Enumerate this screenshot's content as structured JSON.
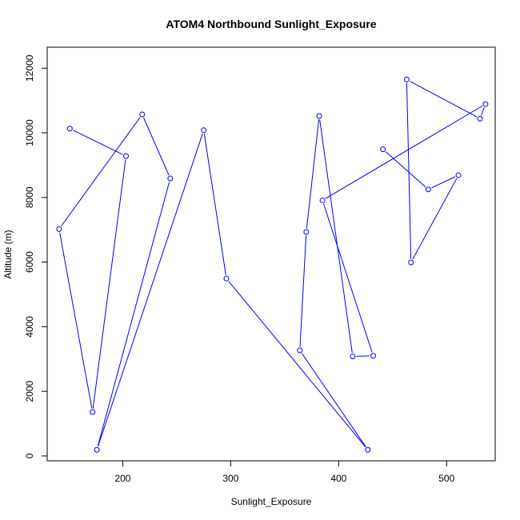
{
  "chart_data": {
    "type": "line",
    "title": "ATOM4 Northbound Sunlight_Exposure",
    "xlabel": "Sunlight_Exposure",
    "ylabel": "Altitude (m)",
    "xlim": [
      130,
      545
    ],
    "ylim": [
      -150,
      12650
    ],
    "x_ticks": [
      200,
      300,
      400,
      500
    ],
    "y_ticks": [
      0,
      2000,
      4000,
      6000,
      8000,
      10000,
      12000
    ],
    "grid": false,
    "series_color": "#0000ff",
    "marker": "open-circle",
    "points": [
      {
        "x": 151,
        "y": 10130
      },
      {
        "x": 203,
        "y": 9280
      },
      {
        "x": 172,
        "y": 1360
      },
      {
        "x": 141,
        "y": 7020
      },
      {
        "x": 218,
        "y": 10570
      },
      {
        "x": 244,
        "y": 8590
      },
      {
        "x": 176,
        "y": 190
      },
      {
        "x": 275,
        "y": 10080
      },
      {
        "x": 296,
        "y": 5490
      },
      {
        "x": 427,
        "y": 190
      },
      {
        "x": 364,
        "y": 3270
      },
      {
        "x": 370,
        "y": 6930
      },
      {
        "x": 382,
        "y": 10520
      },
      {
        "x": 413,
        "y": 3080
      },
      {
        "x": 432,
        "y": 3100
      },
      {
        "x": 385,
        "y": 7910
      },
      {
        "x": 536,
        "y": 10890
      },
      {
        "x": 531,
        "y": 10440
      },
      {
        "x": 463,
        "y": 11650
      },
      {
        "x": 467,
        "y": 5990
      },
      {
        "x": 511,
        "y": 8690
      },
      {
        "x": 483,
        "y": 8250
      },
      {
        "x": 441,
        "y": 9490
      }
    ]
  }
}
